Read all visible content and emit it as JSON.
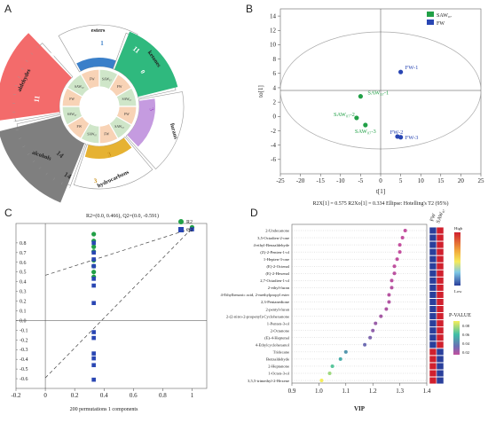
{
  "panels": {
    "a": "A",
    "b": "B",
    "c": "C",
    "d": "D"
  },
  "chart_data": [
    {
      "panel": "A",
      "type": "other",
      "sectors": [
        {
          "name": "esters",
          "count": "1",
          "color": "#3a7fc9"
        },
        {
          "name": "ketones",
          "count": "11",
          "color": "#2fb97e"
        },
        {
          "name": "furans",
          "count": "3",
          "color": "#c59be0"
        },
        {
          "name": "hydrocarbons",
          "count": "3",
          "color": "#e6b232"
        },
        {
          "name": "alcohols",
          "count": "14",
          "color": "#7f7f7f"
        },
        {
          "name": "aldehydes",
          "count": "11",
          "color": "#f36b6b"
        }
      ],
      "inner_labels": [
        "FW",
        "SAW₀₇"
      ],
      "ring_numbers": {
        "ketones": [
          "11",
          "0"
        ],
        "aldehydes": [
          "11",
          "11"
        ],
        "alcohols": [
          "14",
          "14"
        ],
        "hydrocarbons": [
          "3",
          "3"
        ],
        "furans": [
          "3"
        ],
        "esters": [
          "1",
          "0"
        ]
      }
    },
    {
      "panel": "B",
      "type": "scatter",
      "xlabel": "t[1]",
      "ylabel": "to[1]",
      "xlim": [
        -25,
        25
      ],
      "ylim": [
        -8,
        15
      ],
      "xticks": [
        -25,
        -20,
        -15,
        -10,
        -5,
        0,
        5,
        10,
        15,
        20,
        25
      ],
      "yticks": [
        -6,
        -4,
        -2,
        0,
        2,
        4,
        6,
        8,
        10,
        12,
        14
      ],
      "legend": [
        {
          "name": "SAW₀₇",
          "color": "#21a047"
        },
        {
          "name": "FW",
          "color": "#2946b3"
        }
      ],
      "points": [
        {
          "label": "SAW₀₇-1",
          "group": "SAW₀₇",
          "x": -5.0,
          "y": 2.8
        },
        {
          "label": "SAW₀₇-2",
          "group": "SAW₀₇",
          "x": -6.0,
          "y": -0.2
        },
        {
          "label": "SAW₀₇-3",
          "group": "SAW₀₇",
          "x": -3.8,
          "y": -1.2
        },
        {
          "label": "FW-1",
          "group": "FW",
          "x": 5.0,
          "y": 6.2
        },
        {
          "label": "FW-2",
          "group": "FW",
          "x": 4.2,
          "y": -2.8
        },
        {
          "label": "FW-3",
          "group": "FW",
          "x": 5.0,
          "y": -2.9
        }
      ],
      "ellipse": {
        "rx": 25,
        "ry": 12
      },
      "footer": "R2X[1] = 0.575   R2Xo[1] = 0.334   Ellipse: Hotelling's T2 (95%)"
    },
    {
      "panel": "C",
      "type": "scatter",
      "title": "R2=(0.0, 0.466), Q2=(0.0, -0.591)",
      "xlabel": "200 permutations 1 components",
      "xlim": [
        -0.2,
        1.1
      ],
      "ylim": [
        -0.7,
        1.0
      ],
      "xticks": [
        -0.2,
        0,
        0.2,
        0.4,
        0.6,
        0.8,
        1
      ],
      "yticks": [
        -0.6,
        -0.5,
        -0.4,
        -0.3,
        -0.2,
        -0.1,
        0,
        0.1,
        0.2,
        0.3,
        0.4,
        0.5,
        0.6,
        0.7,
        0.8
      ],
      "legend": [
        {
          "name": "R2",
          "color": "#21a047"
        },
        {
          "name": "Q2",
          "color": "#2946b3"
        }
      ],
      "series": [
        {
          "name": "R2",
          "x": 0.33,
          "values": [
            0.89,
            0.82,
            0.76,
            0.71,
            0.62,
            0.56,
            0.5,
            0.45
          ],
          "final": [
            1.0,
            0.96
          ]
        },
        {
          "name": "Q2",
          "x": 0.33,
          "values": [
            0.8,
            0.7,
            0.63,
            0.56,
            0.43,
            0.36,
            0.18,
            -0.12,
            -0.18,
            -0.34,
            -0.39,
            -0.46,
            -0.61
          ],
          "final": [
            1.0,
            0.94
          ]
        }
      ],
      "regression_lines": [
        {
          "name": "R2",
          "from": [
            0.0,
            0.466
          ],
          "to": [
            1.0,
            0.95
          ]
        },
        {
          "name": "Q2",
          "from": [
            0.0,
            -0.591
          ],
          "to": [
            1.0,
            0.95
          ]
        }
      ]
    },
    {
      "panel": "D",
      "type": "scatter",
      "xlabel": "VIP",
      "xlim": [
        0.9,
        1.4
      ],
      "xticks": [
        0.9,
        1.0,
        1.1,
        1.2,
        1.3,
        1.4
      ],
      "columns": [
        "FW",
        "SAW₀₇"
      ],
      "compounds": [
        {
          "name": "2-Undecanone",
          "vip": 1.32,
          "p": 0.02
        },
        {
          "name": "3,5-Octadien-2-one",
          "vip": 1.31,
          "p": 0.02
        },
        {
          "name": "4-ethyl-Benzaldehyde",
          "vip": 1.3,
          "p": 0.02
        },
        {
          "name": "(Z)-2-Penten-1-ol",
          "vip": 1.3,
          "p": 0.02
        },
        {
          "name": "1-Hepten-3-one",
          "vip": 1.29,
          "p": 0.021
        },
        {
          "name": "(E)-2-Octenal",
          "vip": 1.28,
          "p": 0.021
        },
        {
          "name": "(E)-2-Hexenal",
          "vip": 1.28,
          "p": 0.022
        },
        {
          "name": "2,7-Octadien-1-ol",
          "vip": 1.27,
          "p": 0.022
        },
        {
          "name": "2-ethyl-furan",
          "vip": 1.27,
          "p": 0.023
        },
        {
          "name": "4-Ethylbenzoic acid, 2-methylpropyl ester",
          "vip": 1.26,
          "p": 0.023
        },
        {
          "name": "2,3-Pentanedione",
          "vip": 1.26,
          "p": 0.024
        },
        {
          "name": "2-pentyl-furan",
          "vip": 1.25,
          "p": 0.025
        },
        {
          "name": "2-(2-nitro-2-propenyl)-Cyclohexanone",
          "vip": 1.23,
          "p": 0.027
        },
        {
          "name": "1-Penten-3-ol",
          "vip": 1.21,
          "p": 0.03
        },
        {
          "name": "2-Octanone",
          "vip": 1.2,
          "p": 0.032
        },
        {
          "name": "(E)-4-Heptenal",
          "vip": 1.19,
          "p": 0.036
        },
        {
          "name": "4-Ethylcyclohexanol",
          "vip": 1.17,
          "p": 0.04
        },
        {
          "name": "Tridecane",
          "vip": 1.1,
          "p": 0.05
        },
        {
          "name": "Benzaldehyde",
          "vip": 1.08,
          "p": 0.055
        },
        {
          "name": "2-Heptanone",
          "vip": 1.05,
          "p": 0.062
        },
        {
          "name": "1-Octen-3-ol",
          "vip": 1.04,
          "p": 0.07
        },
        {
          "name": "3,5,5-trimethyl-2-Hexene",
          "vip": 1.01,
          "p": 0.08
        }
      ],
      "heatmap_legend": {
        "high": "High",
        "low": "Low"
      },
      "pvalue_legend": {
        "title": "P-VALUE",
        "ticks": [
          "0.08",
          "0.06",
          "0.04",
          "0.02"
        ]
      }
    }
  ]
}
